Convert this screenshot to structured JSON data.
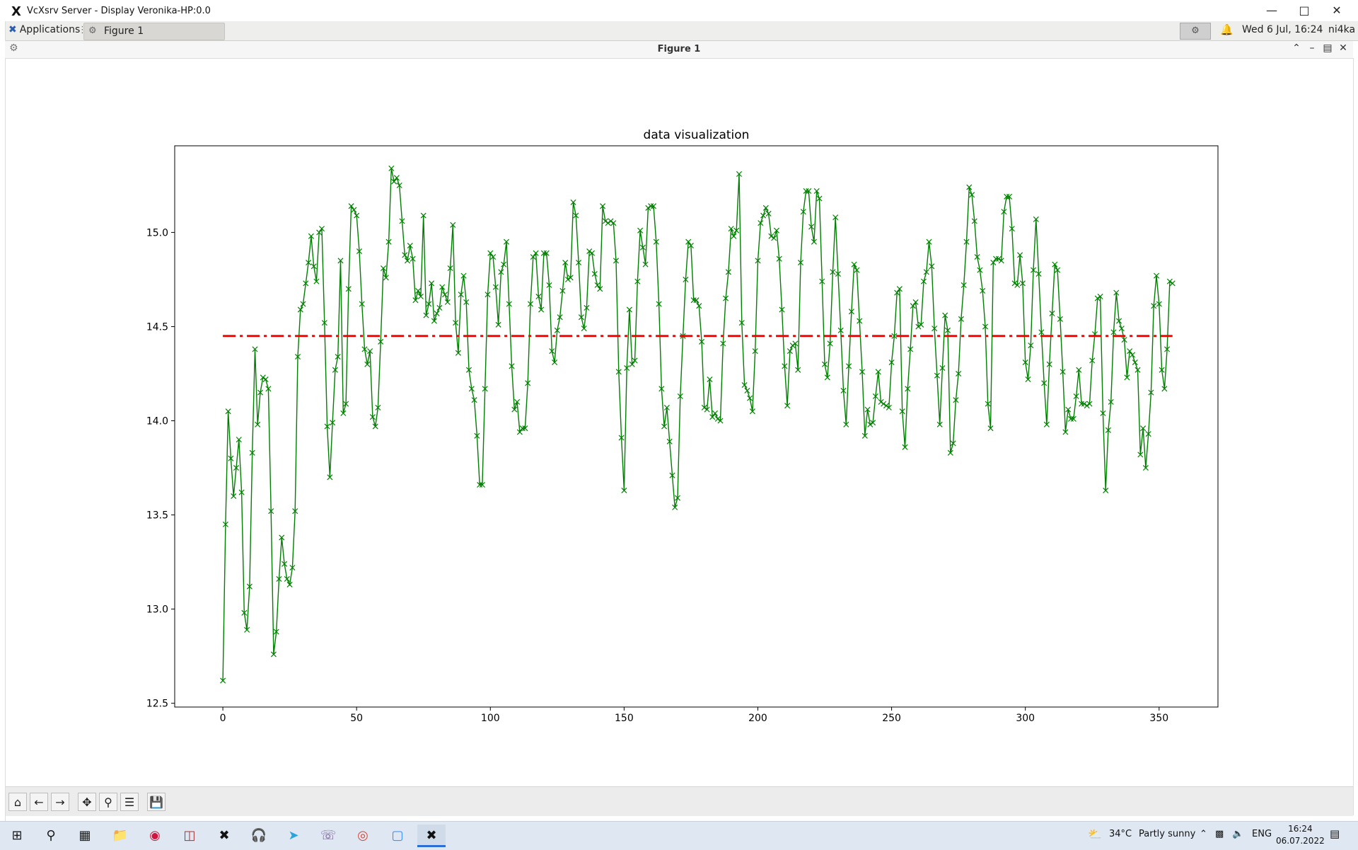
{
  "window": {
    "title": "VcXsrv Server - Display Veronika-HP:0.0"
  },
  "panel": {
    "applications_label": "Applications",
    "task_label": "Figure 1",
    "clock": "Wed  6 Jul, 16:24",
    "user": "ni4ka"
  },
  "inner_window": {
    "title": "Figure 1"
  },
  "toolbar": {
    "buttons": [
      "home-icon",
      "back-icon",
      "forward-icon",
      "pan-icon",
      "zoom-icon",
      "configure-icon",
      "save-icon"
    ]
  },
  "taskbar": {
    "weather_temp": "34°C",
    "weather_desc": "Partly sunny",
    "lang": "ENG",
    "time": "16:24",
    "date": "06.07.2022"
  },
  "colors": {
    "line": "#008000",
    "marker": "#008000",
    "mean_line": "#ff0000"
  },
  "chart_data": {
    "type": "line",
    "title": "data visualization",
    "xlabel": "",
    "ylabel": "",
    "xlim": [
      -18,
      372
    ],
    "ylim": [
      12.48,
      15.46
    ],
    "x_ticks": [
      0,
      50,
      100,
      150,
      200,
      250,
      300,
      350
    ],
    "y_ticks": [
      12.5,
      13.0,
      13.5,
      14.0,
      14.5,
      15.0
    ],
    "x_tick_labels": [
      "0",
      "50",
      "100",
      "150",
      "200",
      "250",
      "300",
      "350"
    ],
    "y_tick_labels": [
      "12.5",
      "13.0",
      "13.5",
      "14.0",
      "14.5",
      "15.0"
    ],
    "grid": false,
    "legend": "none",
    "series": [
      {
        "style": "solid line with x markers",
        "x_start": 0,
        "x_step": 1,
        "values": [
          12.62,
          13.45,
          14.05,
          13.8,
          13.6,
          13.75,
          13.9,
          13.62,
          12.98,
          12.89,
          13.12,
          13.83,
          14.38,
          13.98,
          14.15,
          14.23,
          14.22,
          14.17,
          13.52,
          12.76,
          12.88,
          13.16,
          13.38,
          13.24,
          13.16,
          13.13,
          13.22,
          13.52,
          14.34,
          14.59,
          14.62,
          14.73,
          14.84,
          14.98,
          14.82,
          14.74,
          15.0,
          15.02,
          14.52,
          13.97,
          13.7,
          13.99,
          14.27,
          14.34,
          14.85,
          14.04,
          14.09,
          14.7,
          15.14,
          15.12,
          15.09,
          14.9,
          14.62,
          14.38,
          14.3,
          14.37,
          14.02,
          13.97,
          14.07,
          14.42,
          14.81,
          14.76,
          14.95,
          15.34,
          15.27,
          15.29,
          15.25,
          15.06,
          14.88,
          14.85,
          14.93,
          14.86,
          14.64,
          14.69,
          14.66,
          15.09,
          14.56,
          14.62,
          14.73,
          14.53,
          14.57,
          14.6,
          14.71,
          14.67,
          14.63,
          14.81,
          15.04,
          14.52,
          14.36,
          14.67,
          14.77,
          14.63,
          14.27,
          14.17,
          14.11,
          13.92,
          13.66,
          13.66,
          14.17,
          14.67,
          14.89,
          14.87,
          14.71,
          14.51,
          14.79,
          14.83,
          14.95,
          14.62,
          14.29,
          14.06,
          14.1,
          13.94,
          13.96,
          13.96,
          14.2,
          14.62,
          14.87,
          14.89,
          14.66,
          14.59,
          14.89,
          14.89,
          14.72,
          14.37,
          14.31,
          14.48,
          14.55,
          14.69,
          14.84,
          14.75,
          14.76,
          15.16,
          15.09,
          14.84,
          14.55,
          14.49,
          14.6,
          14.9,
          14.89,
          14.78,
          14.72,
          14.7,
          15.14,
          15.06,
          15.05,
          15.06,
          15.05,
          14.85,
          14.26,
          13.91,
          13.63,
          14.28,
          14.59,
          14.3,
          14.32,
          14.74,
          15.01,
          14.92,
          14.83,
          15.13,
          15.14,
          15.14,
          14.95,
          14.62,
          14.17,
          13.97,
          14.07,
          13.89,
          13.71,
          13.54,
          13.59,
          14.13,
          14.45,
          14.75,
          14.95,
          14.93,
          14.64,
          14.64,
          14.61,
          14.42,
          14.07,
          14.06,
          14.22,
          14.02,
          14.04,
          14.01,
          14.0,
          14.41,
          14.65,
          14.79,
          15.02,
          14.98,
          15.01,
          15.31,
          14.52,
          14.19,
          14.16,
          14.12,
          14.05,
          14.37,
          14.85,
          15.05,
          15.09,
          15.13,
          15.1,
          14.98,
          14.97,
          15.01,
          14.86,
          14.59,
          14.29,
          14.08,
          14.37,
          14.4,
          14.41,
          14.27,
          14.84,
          15.11,
          15.22,
          15.22,
          15.03,
          14.95,
          15.22,
          15.18,
          14.74,
          14.3,
          14.23,
          14.41,
          14.79,
          15.08,
          14.78,
          14.48,
          14.16,
          13.98,
          14.29,
          14.58,
          14.83,
          14.8,
          14.53,
          14.26,
          13.92,
          14.06,
          13.98,
          13.99,
          14.13,
          14.26,
          14.1,
          14.09,
          14.08,
          14.07,
          14.31,
          14.45,
          14.68,
          14.7,
          14.05,
          13.86,
          14.17,
          14.38,
          14.61,
          14.63,
          14.5,
          14.51,
          14.74,
          14.79,
          14.95,
          14.82,
          14.49,
          14.24,
          13.98,
          14.28,
          14.56,
          14.48,
          13.83,
          13.88,
          14.11,
          14.25,
          14.54,
          14.72,
          14.95,
          15.24,
          15.2,
          15.06,
          14.87,
          14.8,
          14.69,
          14.5,
          14.09,
          13.96,
          14.84,
          14.86,
          14.86,
          14.85,
          15.11,
          15.19,
          15.19,
          15.02,
          14.73,
          14.72,
          14.88,
          14.73,
          14.31,
          14.22,
          14.4,
          14.8,
          15.07,
          14.78,
          14.47,
          14.2,
          13.98,
          14.3,
          14.57,
          14.83,
          14.8,
          14.54,
          14.26,
          13.94,
          14.06,
          14.01,
          14.01,
          14.13,
          14.27,
          14.09,
          14.09,
          14.08,
          14.09,
          14.32,
          14.46,
          14.65,
          14.66,
          14.04,
          13.63,
          13.95,
          14.1,
          14.47,
          14.68,
          14.53,
          14.49,
          14.43,
          14.23,
          14.37,
          14.35,
          14.31,
          14.27,
          13.82,
          13.96,
          13.75,
          13.93,
          14.15,
          14.61,
          14.77,
          14.62,
          14.27,
          14.17,
          14.38,
          14.74,
          14.73
        ]
      },
      {
        "style": "dash-dot line (mean)",
        "x": [
          0,
          355
        ],
        "values": [
          14.45,
          14.45
        ]
      }
    ]
  }
}
